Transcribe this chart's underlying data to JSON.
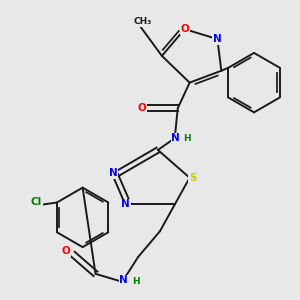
{
  "bg_color": "#e8e8e8",
  "lc": "#1a1a1a",
  "lw": 1.4,
  "colors": {
    "O": "#ff0000",
    "N": "#0000ff",
    "S": "#cccc00",
    "Cl": "#008000",
    "H": "#008000"
  }
}
